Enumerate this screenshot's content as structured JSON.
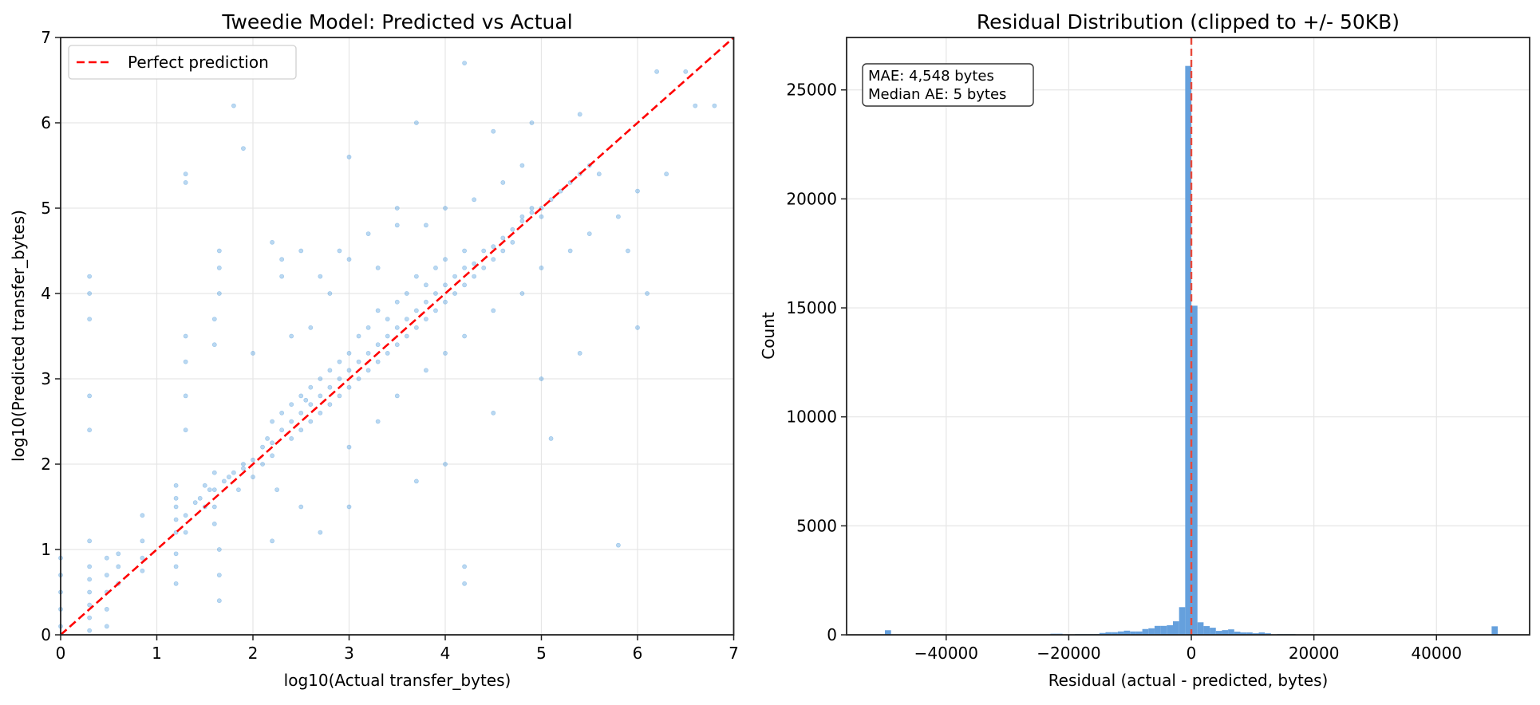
{
  "chart_data": [
    {
      "type": "scatter",
      "title": "Tweedie Model: Predicted vs Actual",
      "xlabel": "log10(Actual transfer_bytes)",
      "ylabel": "log10(Predicted transfer_bytes)",
      "xlim": [
        0,
        7
      ],
      "ylim": [
        0,
        7
      ],
      "xticks": [
        "0",
        "1",
        "2",
        "3",
        "4",
        "5",
        "6",
        "7"
      ],
      "yticks": [
        "0",
        "1",
        "2",
        "3",
        "4",
        "5",
        "6",
        "7"
      ],
      "grid": true,
      "point_color": "#3a8fd6",
      "legend": {
        "position": "top-left",
        "entries": [
          {
            "label": "Perfect prediction",
            "color": "#ff0000",
            "style": "dashed"
          }
        ]
      },
      "reference_line": {
        "from": [
          0,
          0
        ],
        "to": [
          7,
          7
        ],
        "color": "#ff0000",
        "style": "dashed"
      },
      "points": [
        [
          0,
          0.1
        ],
        [
          0,
          0.3
        ],
        [
          0,
          0.5
        ],
        [
          0,
          0.7
        ],
        [
          0,
          0.9
        ],
        [
          0.3,
          0.05
        ],
        [
          0.3,
          0.2
        ],
        [
          0.3,
          0.35
        ],
        [
          0.3,
          0.5
        ],
        [
          0.3,
          0.65
        ],
        [
          0.3,
          0.8
        ],
        [
          0.3,
          1.1
        ],
        [
          0.3,
          2.4
        ],
        [
          0.3,
          2.8
        ],
        [
          0.3,
          3.7
        ],
        [
          0.3,
          4.0
        ],
        [
          0.3,
          4.2
        ],
        [
          0.48,
          0.1
        ],
        [
          0.48,
          0.3
        ],
        [
          0.48,
          0.5
        ],
        [
          0.48,
          0.7
        ],
        [
          0.48,
          0.9
        ],
        [
          0.6,
          0.6
        ],
        [
          0.6,
          0.8
        ],
        [
          0.6,
          0.95
        ],
        [
          0.85,
          0.75
        ],
        [
          0.85,
          0.9
        ],
        [
          0.85,
          1.1
        ],
        [
          0.85,
          1.4
        ],
        [
          1.2,
          0.6
        ],
        [
          1.2,
          0.8
        ],
        [
          1.2,
          0.95
        ],
        [
          1.2,
          1.2
        ],
        [
          1.2,
          1.35
        ],
        [
          1.2,
          1.5
        ],
        [
          1.2,
          1.6
        ],
        [
          1.2,
          1.75
        ],
        [
          1.3,
          1.2
        ],
        [
          1.3,
          1.4
        ],
        [
          1.3,
          2.4
        ],
        [
          1.3,
          2.8
        ],
        [
          1.3,
          3.2
        ],
        [
          1.3,
          3.5
        ],
        [
          1.3,
          5.3
        ],
        [
          1.3,
          5.4
        ],
        [
          1.4,
          1.55
        ],
        [
          1.45,
          1.6
        ],
        [
          1.5,
          1.5
        ],
        [
          1.5,
          1.75
        ],
        [
          1.55,
          1.7
        ],
        [
          1.6,
          1.3
        ],
        [
          1.6,
          1.5
        ],
        [
          1.6,
          1.7
        ],
        [
          1.6,
          1.9
        ],
        [
          1.6,
          3.4
        ],
        [
          1.6,
          3.7
        ],
        [
          1.65,
          4.0
        ],
        [
          1.65,
          4.3
        ],
        [
          1.65,
          4.5
        ],
        [
          1.65,
          1.0
        ],
        [
          1.65,
          0.7
        ],
        [
          1.65,
          0.4
        ],
        [
          1.7,
          1.8
        ],
        [
          1.75,
          1.85
        ],
        [
          1.8,
          1.9
        ],
        [
          1.85,
          1.7
        ],
        [
          1.9,
          2.0
        ],
        [
          1.9,
          1.95
        ],
        [
          2.0,
          2.05
        ],
        [
          2.0,
          1.85
        ],
        [
          2.1,
          2.2
        ],
        [
          2.1,
          2.0
        ],
        [
          2.15,
          2.3
        ],
        [
          2.2,
          2.1
        ],
        [
          2.2,
          2.25
        ],
        [
          2.2,
          2.5
        ],
        [
          2.25,
          1.7
        ],
        [
          2.3,
          2.4
        ],
        [
          2.3,
          2.6
        ],
        [
          2.3,
          4.4
        ],
        [
          2.3,
          4.2
        ],
        [
          2.4,
          2.5
        ],
        [
          2.4,
          2.7
        ],
        [
          2.4,
          2.3
        ],
        [
          2.5,
          2.6
        ],
        [
          2.5,
          2.8
        ],
        [
          2.5,
          2.4
        ],
        [
          2.55,
          2.75
        ],
        [
          2.6,
          2.7
        ],
        [
          2.6,
          2.9
        ],
        [
          2.6,
          2.5
        ],
        [
          2.7,
          2.8
        ],
        [
          2.7,
          2.6
        ],
        [
          2.7,
          3.0
        ],
        [
          2.8,
          2.9
        ],
        [
          2.8,
          2.7
        ],
        [
          2.8,
          3.1
        ],
        [
          2.9,
          3.0
        ],
        [
          2.9,
          3.2
        ],
        [
          2.9,
          2.8
        ],
        [
          3.0,
          3.1
        ],
        [
          3.0,
          3.3
        ],
        [
          3.0,
          2.9
        ],
        [
          3.1,
          3.2
        ],
        [
          3.1,
          3.5
        ],
        [
          3.1,
          3.0
        ],
        [
          3.2,
          3.3
        ],
        [
          3.2,
          3.6
        ],
        [
          3.2,
          3.1
        ],
        [
          3.3,
          3.4
        ],
        [
          3.3,
          3.8
        ],
        [
          3.3,
          3.2
        ],
        [
          3.4,
          3.5
        ],
        [
          3.4,
          3.7
        ],
        [
          3.4,
          3.3
        ],
        [
          3.5,
          3.6
        ],
        [
          3.5,
          3.9
        ],
        [
          3.5,
          3.4
        ],
        [
          3.6,
          3.7
        ],
        [
          3.6,
          4.0
        ],
        [
          3.6,
          3.5
        ],
        [
          3.7,
          3.8
        ],
        [
          3.7,
          4.2
        ],
        [
          3.7,
          3.6
        ],
        [
          3.8,
          3.9
        ],
        [
          3.8,
          4.1
        ],
        [
          3.8,
          3.7
        ],
        [
          3.9,
          4.0
        ],
        [
          3.9,
          4.3
        ],
        [
          3.9,
          3.8
        ],
        [
          4.0,
          4.1
        ],
        [
          4.0,
          4.4
        ],
        [
          4.0,
          3.9
        ],
        [
          4.1,
          4.2
        ],
        [
          4.1,
          4.0
        ],
        [
          4.2,
          4.3
        ],
        [
          4.2,
          4.1
        ],
        [
          4.2,
          4.5
        ],
        [
          4.3,
          4.35
        ],
        [
          4.3,
          4.2
        ],
        [
          4.4,
          4.5
        ],
        [
          4.4,
          4.3
        ],
        [
          4.5,
          4.55
        ],
        [
          4.5,
          4.4
        ],
        [
          4.6,
          4.65
        ],
        [
          4.6,
          4.5
        ],
        [
          4.7,
          4.75
        ],
        [
          4.7,
          4.6
        ],
        [
          4.8,
          4.85
        ],
        [
          4.8,
          4.9
        ],
        [
          4.9,
          4.95
        ],
        [
          4.9,
          5.0
        ],
        [
          5.0,
          5.0
        ],
        [
          5.0,
          4.9
        ],
        [
          5.1,
          5.1
        ],
        [
          5.2,
          5.2
        ],
        [
          5.3,
          5.3
        ],
        [
          5.4,
          5.4
        ],
        [
          5.5,
          5.5
        ],
        [
          5.6,
          5.4
        ],
        [
          2.8,
          4.0
        ],
        [
          3.0,
          4.4
        ],
        [
          3.2,
          4.7
        ],
        [
          3.5,
          4.8
        ],
        [
          3.3,
          4.3
        ],
        [
          2.6,
          3.6
        ],
        [
          2.9,
          4.5
        ],
        [
          3.8,
          4.8
        ],
        [
          4.0,
          5.0
        ],
        [
          4.3,
          5.1
        ],
        [
          4.6,
          5.3
        ],
        [
          4.8,
          5.5
        ],
        [
          3.5,
          5.0
        ],
        [
          3.0,
          5.6
        ],
        [
          4.9,
          6.0
        ],
        [
          4.5,
          5.9
        ],
        [
          3.7,
          6.0
        ],
        [
          1.8,
          6.2
        ],
        [
          4.2,
          6.7
        ],
        [
          6.2,
          6.6
        ],
        [
          6.5,
          6.6
        ],
        [
          6.6,
          6.2
        ],
        [
          6.8,
          6.2
        ],
        [
          5.4,
          6.1
        ],
        [
          2.7,
          4.2
        ],
        [
          2.4,
          3.5
        ],
        [
          2.0,
          3.3
        ],
        [
          1.9,
          5.7
        ],
        [
          2.2,
          4.6
        ],
        [
          2.5,
          4.5
        ],
        [
          3.0,
          2.2
        ],
        [
          3.3,
          2.5
        ],
        [
          3.5,
          2.8
        ],
        [
          3.8,
          3.1
        ],
        [
          4.0,
          3.3
        ],
        [
          4.2,
          3.5
        ],
        [
          4.5,
          3.8
        ],
        [
          4.8,
          4.0
        ],
        [
          5.0,
          4.3
        ],
        [
          5.3,
          4.5
        ],
        [
          5.5,
          4.7
        ],
        [
          5.8,
          4.9
        ],
        [
          6.0,
          5.2
        ],
        [
          6.3,
          5.4
        ],
        [
          6.0,
          3.6
        ],
        [
          5.0,
          3.0
        ],
        [
          4.5,
          2.6
        ],
        [
          4.0,
          2.0
        ],
        [
          3.7,
          1.8
        ],
        [
          3.0,
          1.5
        ],
        [
          2.5,
          1.5
        ],
        [
          2.7,
          1.2
        ],
        [
          2.2,
          1.1
        ],
        [
          4.2,
          0.8
        ],
        [
          4.2,
          0.6
        ],
        [
          5.8,
          1.05
        ],
        [
          5.1,
          2.3
        ],
        [
          5.4,
          3.3
        ],
        [
          6.1,
          4.0
        ],
        [
          5.9,
          4.5
        ]
      ]
    },
    {
      "type": "bar",
      "subtype": "histogram",
      "title": "Residual Distribution (clipped to +/- 50KB)",
      "xlabel": "Residual (actual - predicted, bytes)",
      "ylabel": "Count",
      "xlim": [
        -56250,
        55200
      ],
      "ylim": [
        0,
        27405
      ],
      "xticks": [
        -40000,
        -20000,
        0,
        20000,
        40000
      ],
      "xtick_labels": [
        "−40000",
        "−20000",
        "0",
        "20000",
        "40000"
      ],
      "yticks": [
        0,
        5000,
        10000,
        15000,
        20000,
        25000
      ],
      "ytick_labels": [
        "0",
        "5000",
        "10000",
        "15000",
        "20000",
        "25000"
      ],
      "grid": true,
      "bar_color": "#65a0dd",
      "bin_start": -50000,
      "bin_width": 1000,
      "counts": [
        210,
        0,
        0,
        0,
        0,
        0,
        0,
        0,
        0,
        0,
        0,
        0,
        0,
        0,
        0,
        0,
        0,
        0,
        0,
        0,
        0,
        0,
        0,
        0,
        0,
        0,
        0,
        50,
        50,
        0,
        0,
        40,
        40,
        40,
        40,
        85,
        120,
        120,
        155,
        190,
        155,
        155,
        265,
        300,
        410,
        410,
        440,
        620,
        1270,
        26100,
        15100,
        575,
        400,
        325,
        180,
        215,
        250,
        145,
        110,
        110,
        70,
        110,
        70,
        0,
        40,
        40,
        40,
        0,
        0,
        0,
        0,
        0,
        0,
        0,
        0,
        0,
        0,
        0,
        0,
        0,
        0,
        0,
        0,
        0,
        0,
        0,
        0,
        0,
        0,
        0,
        0,
        0,
        0,
        0,
        0,
        0,
        0,
        0,
        0,
        390
      ],
      "reference_line": {
        "x": 0,
        "color": "#e8493a",
        "style": "dashed"
      },
      "annotation": {
        "position": "top-left",
        "lines": [
          "MAE: 4,548 bytes",
          "Median AE: 5 bytes"
        ]
      }
    }
  ]
}
